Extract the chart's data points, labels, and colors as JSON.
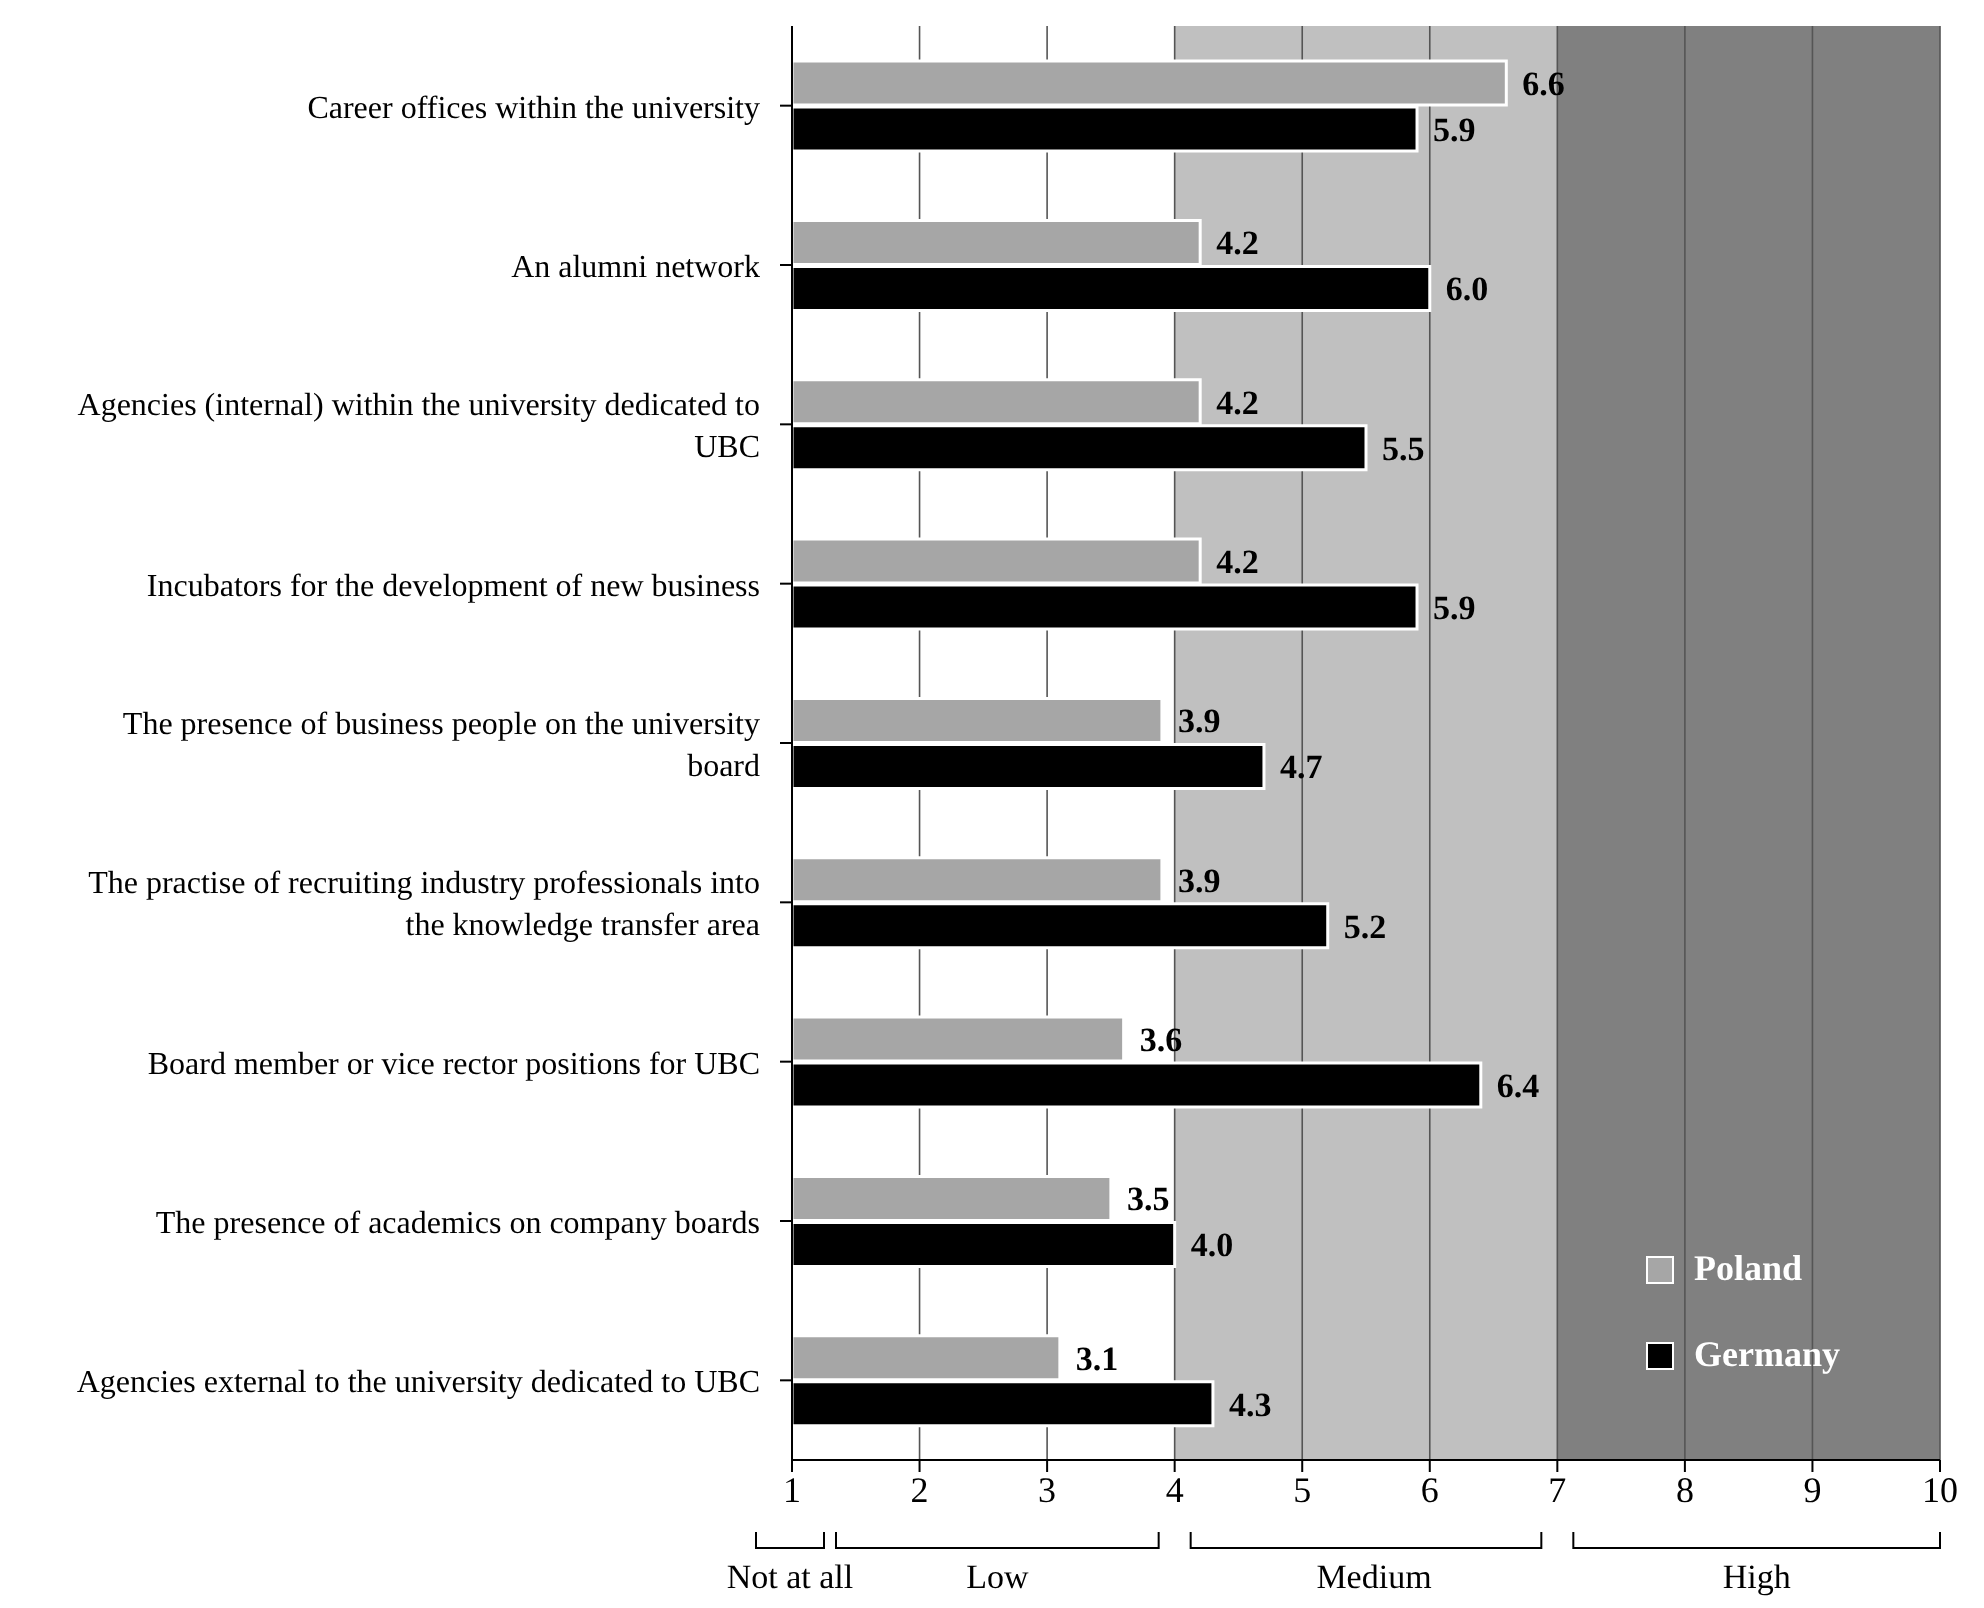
{
  "chart_data": {
    "type": "bar",
    "orientation": "horizontal",
    "categories": [
      "Career offices within the university",
      "An alumni network",
      "Agencies (internal) within the university dedicated to UBC",
      "Incubators for the development of new business",
      "The presence of business people on the university board",
      "The practise of recruiting industry professionals into the knowledge transfer area",
      "Board member or vice rector positions for UBC",
      "The presence of academics on company boards",
      "Agencies external to the university dedicated to UBC"
    ],
    "series": [
      {
        "name": "Poland",
        "color": "#a6a6a6",
        "values": [
          6.6,
          4.2,
          4.2,
          4.2,
          3.9,
          3.9,
          3.6,
          3.5,
          3.1
        ],
        "value_labels": [
          "6.6",
          "4.2",
          "4.2",
          "4.2",
          "3.9",
          "3.9",
          "3.6",
          "3.5",
          "3.1"
        ]
      },
      {
        "name": "Germany",
        "color": "#000000",
        "values": [
          5.9,
          6.0,
          5.5,
          5.9,
          4.7,
          5.2,
          6.4,
          4.0,
          4.3
        ],
        "value_labels": [
          "5.9",
          "6.0",
          "5.5",
          "5.9",
          "4.7",
          "5.2",
          "6.4",
          "4.0",
          "4.3"
        ]
      }
    ],
    "xlim": [
      1,
      10
    ],
    "xticks": [
      1,
      2,
      3,
      4,
      5,
      6,
      7,
      8,
      9,
      10
    ],
    "grid": "x",
    "legend": "bottom right",
    "bands": [
      {
        "axis": "x",
        "from": 4,
        "to": 7,
        "label": "Medium",
        "color": "#c0c0c0"
      },
      {
        "axis": "x",
        "from": 7,
        "to": 10,
        "label": "High",
        "color": "#808080"
      }
    ],
    "annotations": [
      "Not at all",
      "Low"
    ]
  }
}
